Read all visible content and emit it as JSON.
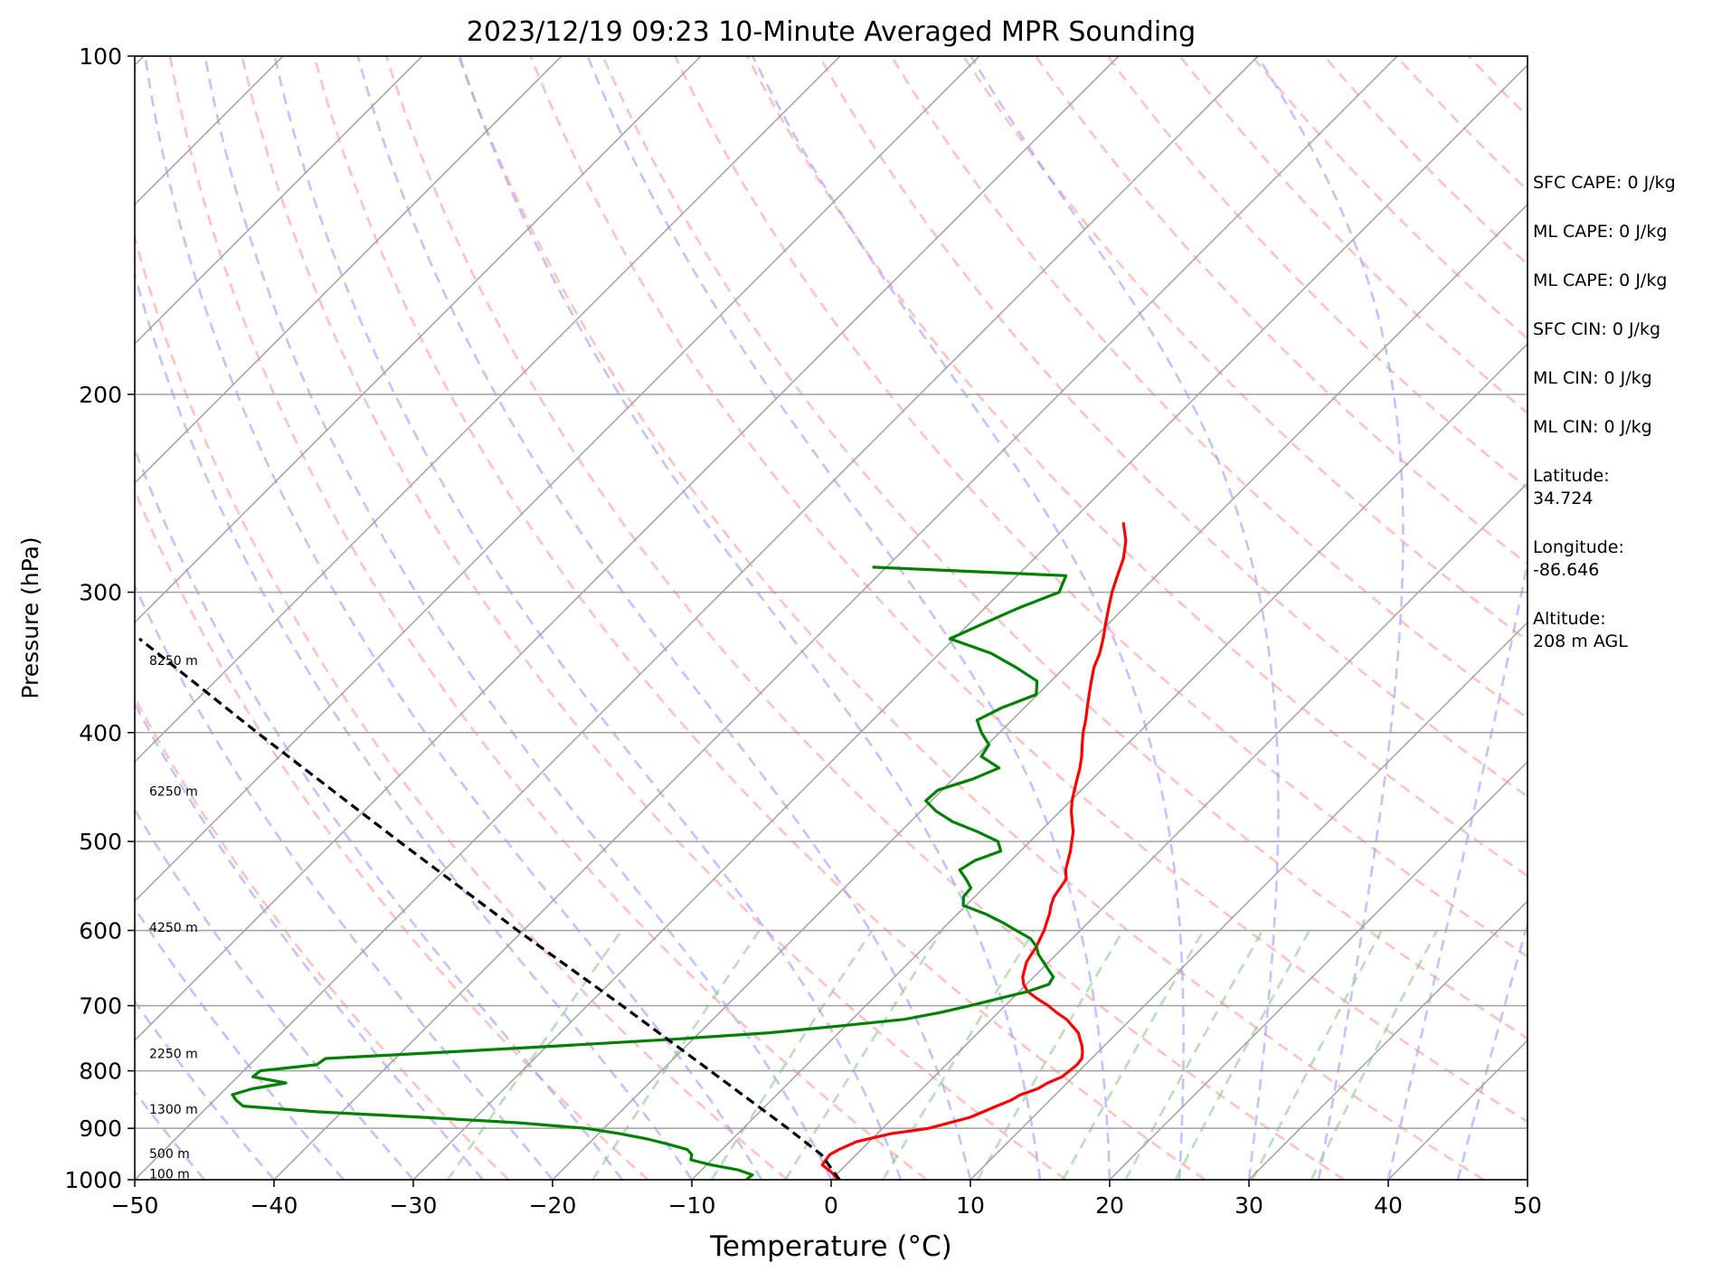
{
  "chart_data": {
    "type": "line",
    "title": "2023/12/19 09:23 10-Minute Averaged MPR Sounding",
    "xlabel": "Temperature (°C)",
    "ylabel": "Pressure (hPa)",
    "xlim": [
      -50,
      50
    ],
    "ylim": [
      1000,
      100
    ],
    "y_scale": "log",
    "skew": 45,
    "grid": true,
    "x_ticks": [
      -50,
      -40,
      -30,
      -20,
      -10,
      0,
      10,
      20,
      30,
      40,
      50
    ],
    "x_tick_labels": [
      "−50",
      "−40",
      "−30",
      "−20",
      "−10",
      "0",
      "10",
      "20",
      "30",
      "40",
      "50"
    ],
    "y_ticks": [
      1000,
      900,
      800,
      700,
      600,
      500,
      400,
      300,
      200,
      100
    ],
    "y_tick_labels": [
      "1000",
      "900",
      "800",
      "700",
      "600",
      "500",
      "400",
      "300",
      "200",
      "100"
    ],
    "colors": {
      "temperature": "#ff0000",
      "dewpoint": "#008000",
      "parcel": "#000000",
      "isotherm": "#a0a0a0",
      "dry_adiabat": "#ff9999",
      "moist_adiabat": "#9999ff",
      "mixing_ratio": "#8cc88c"
    },
    "series": [
      {
        "key": "temperature",
        "pressure": [
          1000,
          985,
          970,
          950,
          940,
          925,
          910,
          900,
          880,
          860,
          850,
          840,
          830,
          820,
          810,
          800,
          790,
          780,
          770,
          760,
          750,
          740,
          730,
          720,
          710,
          700,
          690,
          680,
          670,
          660,
          650,
          640,
          630,
          620,
          610,
          600,
          590,
          580,
          570,
          560,
          550,
          540,
          530,
          520,
          510,
          500,
          490,
          480,
          470,
          460,
          450,
          440,
          430,
          420,
          410,
          400,
          390,
          380,
          370,
          360,
          350,
          340,
          330,
          320,
          310,
          300,
          290,
          280,
          270,
          260
        ],
        "values": [
          0.5,
          -0.5,
          -1.7,
          -1.9,
          -1.6,
          -0.9,
          1.0,
          3.3,
          5.5,
          6.6,
          7.2,
          7.5,
          8.3,
          8.6,
          9.2,
          9.3,
          9.4,
          9.3,
          8.9,
          8.4,
          7.8,
          7.2,
          6.3,
          5.4,
          4.2,
          3.1,
          1.8,
          0.6,
          -0.2,
          -0.8,
          -1.2,
          -1.6,
          -1.8,
          -2.0,
          -2.3,
          -2.6,
          -3.0,
          -3.4,
          -3.9,
          -4.3,
          -4.5,
          -4.7,
          -5.4,
          -5.9,
          -6.4,
          -7.0,
          -7.6,
          -8.4,
          -9.2,
          -9.9,
          -10.5,
          -11.1,
          -11.7,
          -12.4,
          -13.2,
          -14.0,
          -14.7,
          -15.5,
          -16.3,
          -17.1,
          -17.9,
          -18.5,
          -19.3,
          -20.2,
          -21.1,
          -22.0,
          -22.8,
          -23.6,
          -24.7,
          -26.2
        ]
      },
      {
        "key": "dewpoint",
        "pressure": [
          1000,
          990,
          980,
          970,
          960,
          950,
          940,
          930,
          920,
          910,
          900,
          890,
          880,
          870,
          860,
          850,
          840,
          830,
          820,
          810,
          800,
          790,
          780,
          770,
          760,
          750,
          740,
          730,
          720,
          710,
          700,
          690,
          680,
          670,
          660,
          650,
          640,
          630,
          620,
          610,
          600,
          590,
          580,
          570,
          560,
          550,
          540,
          530,
          520,
          510,
          500,
          490,
          480,
          470,
          460,
          450,
          440,
          430,
          420,
          410,
          400,
          390,
          380,
          370,
          360,
          350,
          340,
          330,
          320,
          310,
          300,
          290,
          285
        ],
        "values": [
          -6.1,
          -6.0,
          -7.4,
          -9.7,
          -11.5,
          -11.8,
          -12.5,
          -14.2,
          -16.1,
          -18.5,
          -21.3,
          -26.5,
          -33.8,
          -41.8,
          -47.5,
          -48.4,
          -49.1,
          -48.1,
          -46.1,
          -48.9,
          -48.8,
          -45.2,
          -45.0,
          -36.9,
          -29.1,
          -21.5,
          -15.0,
          -10.5,
          -6.3,
          -4.2,
          -2.5,
          -1.0,
          0.6,
          1.6,
          1.4,
          0.5,
          -0.4,
          -1.3,
          -2.0,
          -3.0,
          -4.6,
          -6.2,
          -8.0,
          -10.2,
          -10.8,
          -10.9,
          -11.9,
          -13.0,
          -12.6,
          -11.4,
          -12.3,
          -14.5,
          -17.0,
          -18.9,
          -20.4,
          -20.3,
          -18.6,
          -17.5,
          -19.6,
          -19.9,
          -21.3,
          -22.5,
          -21.6,
          -20.1,
          -21.0,
          -23.5,
          -26.3,
          -30.3,
          -29.0,
          -27.6,
          -25.8,
          -26.5,
          -41.0
        ]
      },
      {
        "key": "parcel",
        "pressure": [
          1000,
          950,
          900,
          800,
          700,
          600,
          500,
          400,
          330
        ],
        "values": [
          0.6,
          -2.5,
          -6.8,
          -16.5,
          -27.5,
          -40.4,
          -55.3,
          -73.3,
          -88.5
        ]
      }
    ],
    "height_labels": [
      {
        "text": "100 m",
        "pressure": 988
      },
      {
        "text": "500 m",
        "pressure": 948
      },
      {
        "text": "1300 m",
        "pressure": 865
      },
      {
        "text": "2250 m",
        "pressure": 772
      },
      {
        "text": "4250 m",
        "pressure": 596
      },
      {
        "text": "6250 m",
        "pressure": 451
      },
      {
        "text": "8250 m",
        "pressure": 345
      }
    ],
    "annotations": [
      "SFC CAPE: 0 J/kg",
      "ML CAPE: 0 J/kg",
      "ML CAPE: 0 J/kg",
      "SFC CIN: 0 J/kg",
      "ML CIN: 0 J/kg",
      "ML CIN: 0 J/kg",
      "Latitude:",
      "34.724",
      "Longitude:",
      "-86.646",
      "Altitude:",
      "208 m AGL"
    ]
  }
}
